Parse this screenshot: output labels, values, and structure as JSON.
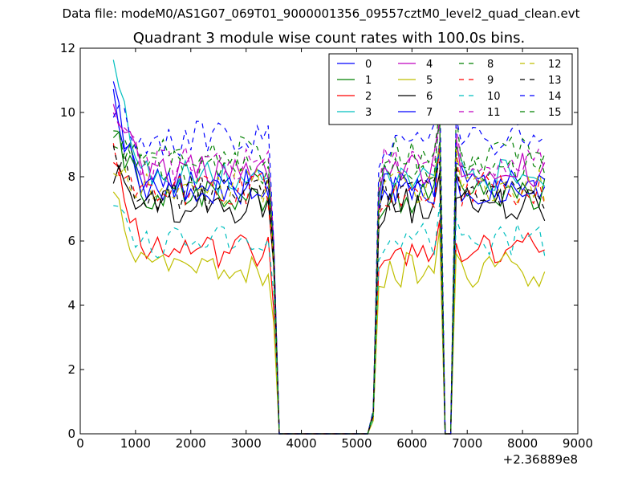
{
  "suptitle": "Data file: modeM0/AS1G07_069T01_9000001356_09557cztM0_level2_quad_clean.evt",
  "chart_data": {
    "type": "line",
    "title": "Quadrant 3 module wise count rates with 100.0s bins.",
    "xlabel": "",
    "ylabel": "",
    "x_offset_label": "+2.36889e8",
    "xlim": [
      0,
      9000
    ],
    "ylim": [
      0,
      12
    ],
    "xticks": [
      "0",
      "1000",
      "2000",
      "3000",
      "4000",
      "5000",
      "6000",
      "7000",
      "8000",
      "9000"
    ],
    "yticks": [
      "0",
      "2",
      "4",
      "6",
      "8",
      "10",
      "12"
    ],
    "grid": false,
    "legend_position": "top-right",
    "bins": {
      "x_start": 600,
      "x_step": 100,
      "segments": [
        [
          600,
          3500
        ],
        [
          5300,
          6500
        ],
        [
          6800,
          8400
        ]
      ],
      "zero_from": 3600,
      "zero_to": 5200,
      "dip_x": [
        6600,
        6700
      ]
    },
    "series": [
      {
        "name": "0",
        "color": "#0000ff",
        "dash": false,
        "level": 7.8,
        "start": 10.5
      },
      {
        "name": "1",
        "color": "#008000",
        "dash": false,
        "level": 7.4,
        "start": 9.7
      },
      {
        "name": "2",
        "color": "#ff0000",
        "dash": false,
        "level": 5.7,
        "start": 8.3
      },
      {
        "name": "3",
        "color": "#00bfbf",
        "dash": false,
        "level": 8.0,
        "start": 11.2
      },
      {
        "name": "4",
        "color": "#bf00bf",
        "dash": false,
        "level": 8.2,
        "start": 9.9
      },
      {
        "name": "5",
        "color": "#bfbf00",
        "dash": false,
        "level": 5.1,
        "start": 7.2
      },
      {
        "name": "6",
        "color": "#000000",
        "dash": false,
        "level": 7.1,
        "start": 8.2
      },
      {
        "name": "7",
        "color": "#0000ff",
        "dash": false,
        "level": 7.7,
        "start": 10.2
      },
      {
        "name": "8",
        "color": "#008000",
        "dash": true,
        "level": 8.7,
        "start": 9.4
      },
      {
        "name": "9",
        "color": "#ff0000",
        "dash": true,
        "level": 7.6,
        "start": 8.6
      },
      {
        "name": "10",
        "color": "#00bfbf",
        "dash": true,
        "level": 6.0,
        "start": 7.5
      },
      {
        "name": "11",
        "color": "#bf00bf",
        "dash": true,
        "level": 8.4,
        "start": 9.8
      },
      {
        "name": "12",
        "color": "#bfbf00",
        "dash": true,
        "level": 7.7,
        "start": 8.1
      },
      {
        "name": "13",
        "color": "#000000",
        "dash": true,
        "level": 7.5,
        "start": 8.8
      },
      {
        "name": "14",
        "color": "#0000ff",
        "dash": true,
        "level": 9.2,
        "start": 10.0
      },
      {
        "name": "15",
        "color": "#008000",
        "dash": true,
        "level": 8.3,
        "start": 9.2
      }
    ]
  }
}
